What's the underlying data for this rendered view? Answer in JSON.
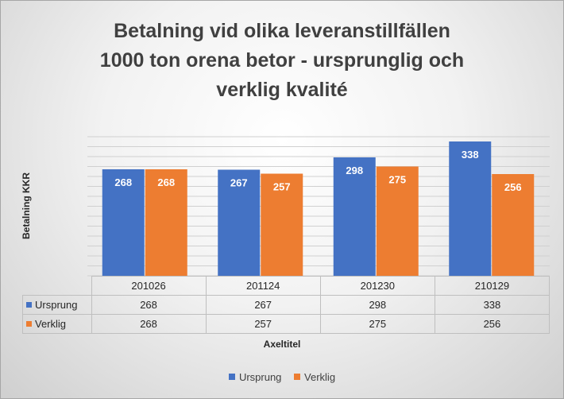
{
  "colors": {
    "ursprung": "#4472c4",
    "verklig": "#ed7d31"
  },
  "chart_data": {
    "type": "bar",
    "title_lines": [
      "Betalning vid olika leveranstillfällen",
      "1000 ton orena betor - ursprunglig och",
      "verklig kvalité"
    ],
    "xlabel": "Axeltitel",
    "ylabel": "Betalning KKR",
    "categories": [
      "201026",
      "201124",
      "201230",
      "210129"
    ],
    "series": [
      {
        "name": "Ursprung",
        "values": [
          268,
          267,
          298,
          338
        ]
      },
      {
        "name": "Verklig",
        "values": [
          268,
          257,
          275,
          256
        ]
      }
    ],
    "ylim": [
      0,
      350
    ],
    "y_tick_step": 25,
    "grid": true,
    "y_tick_labels_shown": false,
    "data_table": true,
    "legend_position": "bottom"
  }
}
